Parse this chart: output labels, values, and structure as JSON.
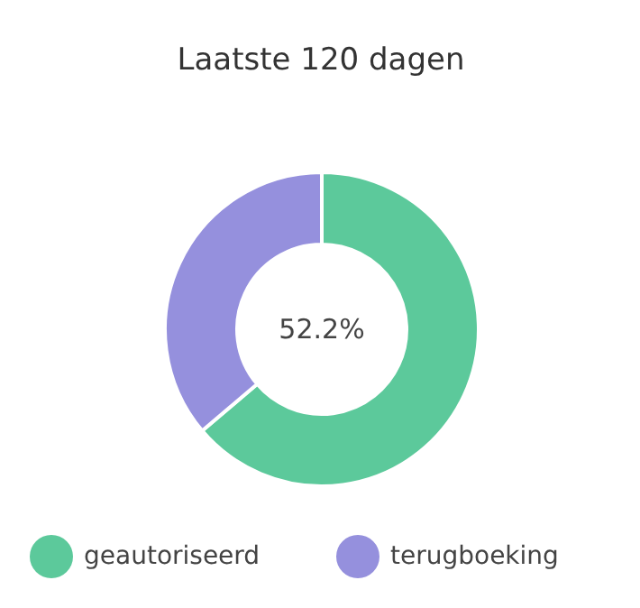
{
  "chart_data": {
    "type": "donut",
    "title": "Laatste 120 dagen",
    "categories": [
      "geautoriseerd",
      "terugboeking"
    ],
    "values": [
      63.8,
      36.2
    ],
    "colors": [
      "#5cc99b",
      "#9590dd"
    ],
    "annotations": [
      "52.2%"
    ],
    "legend": "bottom"
  }
}
